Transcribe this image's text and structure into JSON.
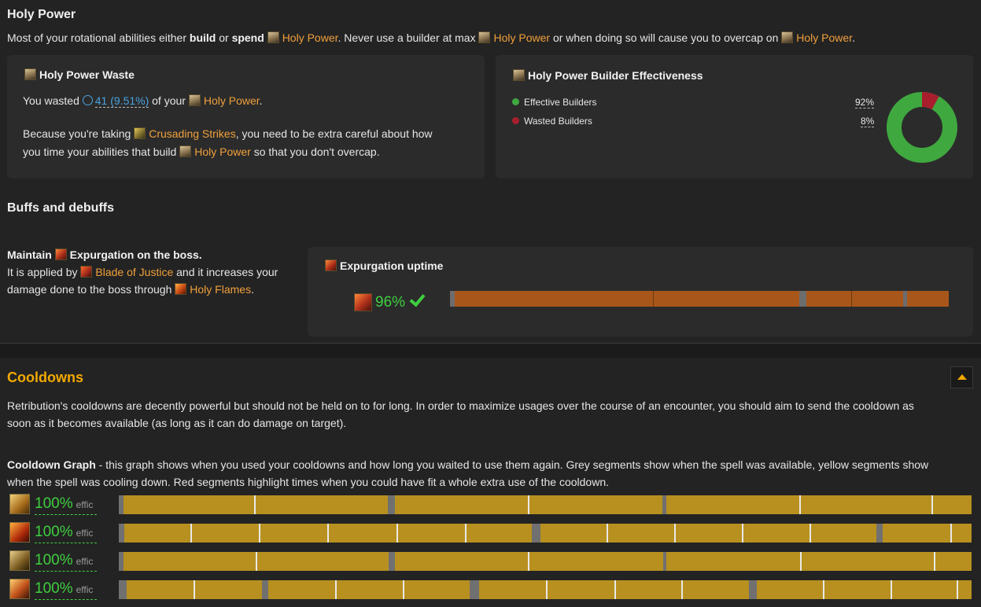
{
  "holy_power": {
    "title": "Holy Power",
    "intro": {
      "t1": "Most of your rotational abilities either ",
      "b1": "build",
      "t2": " or ",
      "b2": "spend",
      "hp": "Holy Power",
      "t3": ". Never use a builder at max ",
      "t4": " or when doing so will cause you to overcap on ",
      "t5": "."
    },
    "waste_panel": {
      "title_link": "Holy Power",
      "title_rest": " Waste",
      "wasted_prefix": "You wasted ",
      "wasted_value": "41 (9.51%)",
      "wasted_suffix_a": " of your ",
      "wasted_suffix_b": ".",
      "note_a": "Because you're taking ",
      "note_link": "Crusading Strikes",
      "note_b": ", you need to be extra careful about how",
      "note_c": "you time your abilities that build ",
      "note_d": " so that you don't overcap."
    },
    "effectiveness_panel": {
      "title_link": "Holy Power",
      "title_rest": " Builder Effectiveness",
      "legend": [
        {
          "label": "Effective Builders",
          "value": "92%",
          "color": "#3fa83f"
        },
        {
          "label": "Wasted Builders",
          "value": "8%",
          "color": "#a81e2d"
        }
      ]
    }
  },
  "buffs": {
    "title": "Buffs and debuffs",
    "maintain": "Maintain ",
    "spell": "Expurgation",
    "on_boss": " on the boss.",
    "applied_a": "It is applied by ",
    "applied_link": "Blade of Justice",
    "applied_b": " and it increases your",
    "damage_a": "damage done to the boss through ",
    "damage_link": "Holy Flames",
    "damage_b": ".",
    "uptime_panel": {
      "spell": "Expurgation",
      "rest": " uptime",
      "percent": "96%",
      "uptime_fraction": 0.96
    }
  },
  "cooldowns": {
    "title": "Cooldowns",
    "description_1": "Retribution's cooldowns are decently powerful but should not be held on to for long. In order to maximize usages over the course of an encounter, you should aim to send the cooldown as",
    "description_2": "soon as it becomes available (as long as it can do damage on target).",
    "graph_label": "Cooldown Graph",
    "graph_text_1": " - this graph shows when you used your cooldowns and how long you waited to use them again. Grey segments show when the spell was available, yellow segments show",
    "graph_text_2": "when the spell was cooling down. Red segments highlight times when you could have fit a whole extra use of the cooldown.",
    "rows": [
      {
        "icon": "final-verdict-icon",
        "percent": "100%",
        "effic": "effic"
      },
      {
        "icon": "wake-of-ashes-icon",
        "percent": "100%",
        "effic": "effic"
      },
      {
        "icon": "divine-toll-icon",
        "percent": "100%",
        "effic": "effic"
      },
      {
        "icon": "execution-sentence-icon",
        "percent": "100%",
        "effic": "effic"
      }
    ]
  },
  "colors": {
    "accent": "#f2a900",
    "good": "#3fcf3f",
    "bad": "#a81e2d",
    "link": "#f0a03c"
  }
}
